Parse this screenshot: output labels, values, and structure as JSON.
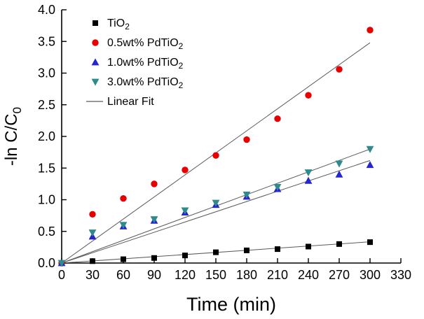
{
  "chart_data": {
    "type": "scatter",
    "title": "",
    "xlabel": "Time (min)",
    "ylabel": "-ln C/C_0",
    "ylabel_main": "-ln C/C",
    "ylabel_sub": "0",
    "xlim": [
      0,
      330
    ],
    "ylim": [
      0,
      4.0
    ],
    "xticks": [
      0,
      30,
      60,
      90,
      120,
      150,
      180,
      210,
      240,
      270,
      300,
      330
    ],
    "yticks": [
      0.0,
      0.5,
      1.0,
      1.5,
      2.0,
      2.5,
      3.0,
      3.5,
      4.0
    ],
    "grid": false,
    "legend_position": "upper-left",
    "x": [
      0,
      30,
      60,
      90,
      120,
      150,
      180,
      210,
      240,
      270,
      300
    ],
    "series": [
      {
        "name": "TiO2",
        "label_main": "TiO",
        "label_sub": "2",
        "marker": "square",
        "color": "#000000",
        "y": [
          0,
          0.03,
          0.06,
          0.08,
          0.12,
          0.17,
          0.2,
          0.22,
          0.26,
          0.3,
          0.33
        ],
        "fit_end_y": 0.335
      },
      {
        "name": "0.5wt% PdTiO2",
        "label_main": "0.5wt% PdTiO",
        "label_sub": "2",
        "marker": "circle",
        "color": "#e60000",
        "y": [
          0,
          0.77,
          1.02,
          1.25,
          1.47,
          1.7,
          1.95,
          2.28,
          2.65,
          3.06,
          3.68
        ],
        "fit_end_y": 3.48
      },
      {
        "name": "1.0wt% PdTiO2",
        "label_main": "1.0wt% PdTiO",
        "label_sub": "2",
        "marker": "triangle-up",
        "color": "#2525cc",
        "y": [
          0,
          0.42,
          0.58,
          0.67,
          0.8,
          0.92,
          1.05,
          1.17,
          1.3,
          1.4,
          1.55
        ],
        "fit_end_y": 1.62
      },
      {
        "name": "3.0wt% PdTiO2",
        "label_main": "3.0wt% PdTiO",
        "label_sub": "2",
        "marker": "triangle-down",
        "color": "#2e8b8b",
        "y": [
          0,
          0.48,
          0.6,
          0.69,
          0.83,
          0.95,
          1.08,
          1.2,
          1.43,
          1.57,
          1.8
        ],
        "fit_end_y": 1.8
      }
    ],
    "fit_label": "Linear Fit",
    "fit_color": "#5a5a5a",
    "fit_x_end": 300
  }
}
